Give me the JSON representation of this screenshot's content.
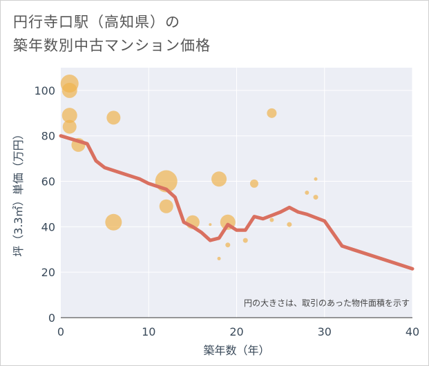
{
  "title_lines": [
    "円行寺口駅（高知県）の",
    "築年数別中古マンション価格"
  ],
  "chart_data": {
    "type": "scatter",
    "xlabel": "築年数（年）",
    "ylabel": "坪（3.3㎡）単価（万円）",
    "xlim": [
      0,
      40
    ],
    "ylim": [
      0,
      110
    ],
    "xticks": [
      0,
      10,
      20,
      30,
      40
    ],
    "yticks": [
      0,
      20,
      40,
      60,
      80,
      100
    ],
    "grid": true,
    "note": "円の大きさは、取引のあった物件面積を示す",
    "colors": {
      "bubble": "#f0b450",
      "trend": "#d97060",
      "plot_bg": "#eceef5",
      "grid": "#ffffff"
    },
    "bubbles": [
      {
        "x": 1,
        "y": 103,
        "r": 13
      },
      {
        "x": 1,
        "y": 100,
        "r": 11
      },
      {
        "x": 1,
        "y": 89,
        "r": 11
      },
      {
        "x": 1,
        "y": 84,
        "r": 10
      },
      {
        "x": 2,
        "y": 76,
        "r": 10
      },
      {
        "x": 6,
        "y": 88,
        "r": 10
      },
      {
        "x": 6,
        "y": 42,
        "r": 12
      },
      {
        "x": 12,
        "y": 60,
        "r": 16
      },
      {
        "x": 12,
        "y": 49,
        "r": 10
      },
      {
        "x": 15,
        "y": 42,
        "r": 10
      },
      {
        "x": 17,
        "y": 41,
        "r": 2
      },
      {
        "x": 18,
        "y": 61,
        "r": 11
      },
      {
        "x": 18,
        "y": 26,
        "r": 2.5
      },
      {
        "x": 19,
        "y": 42,
        "r": 11
      },
      {
        "x": 19,
        "y": 32,
        "r": 3.5
      },
      {
        "x": 21,
        "y": 34,
        "r": 3.5
      },
      {
        "x": 22,
        "y": 59,
        "r": 6
      },
      {
        "x": 24,
        "y": 90,
        "r": 7
      },
      {
        "x": 24,
        "y": 43,
        "r": 3
      },
      {
        "x": 26,
        "y": 41,
        "r": 3.5
      },
      {
        "x": 28,
        "y": 55,
        "r": 3
      },
      {
        "x": 29,
        "y": 61,
        "r": 2.5
      },
      {
        "x": 29,
        "y": 53,
        "r": 3.5
      }
    ],
    "trend": {
      "x": [
        0,
        3,
        4,
        5,
        9,
        10,
        12,
        13,
        14,
        15,
        16,
        17,
        18,
        19,
        20,
        21,
        22,
        23,
        24,
        25,
        26,
        27,
        28,
        29,
        30,
        32,
        40
      ],
      "y": [
        80,
        76.5,
        69,
        66,
        61,
        59,
        56.5,
        53,
        42,
        40,
        37.5,
        34,
        35,
        41,
        38.5,
        38.5,
        44.5,
        43.5,
        45,
        46.5,
        48.5,
        46.5,
        45.5,
        44,
        42.5,
        31.5,
        21.5
      ]
    }
  }
}
